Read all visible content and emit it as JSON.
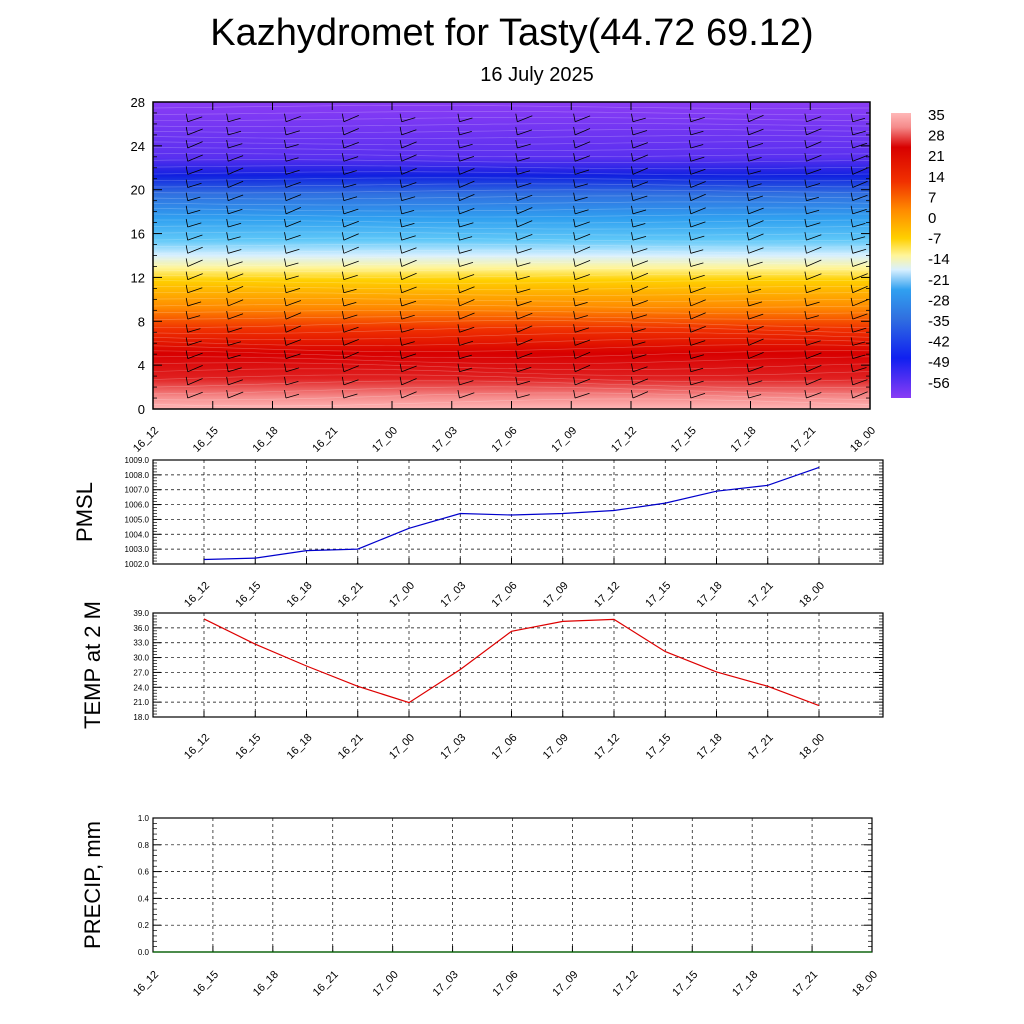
{
  "title": "Kazhydromet for Tasty(44.72 69.12)",
  "subtitle": "16 July 2025",
  "time_labels": [
    "16_12",
    "16_15",
    "16_18",
    "16_21",
    "17_00",
    "17_03",
    "17_06",
    "17_09",
    "17_12",
    "17_15",
    "17_18",
    "17_21",
    "18_00"
  ],
  "chart_data": [
    {
      "type": "heatmap",
      "title": "",
      "xlabel": "",
      "ylabel": "",
      "x": [
        "16_12",
        "16_15",
        "16_18",
        "16_21",
        "17_00",
        "17_03",
        "17_06",
        "17_09",
        "17_12",
        "17_15",
        "17_18",
        "17_21",
        "18_00"
      ],
      "y_ticks": [
        0,
        4,
        8,
        12,
        16,
        20,
        24,
        28
      ],
      "ylim": [
        0,
        28
      ],
      "colorbar_labels": [
        "35",
        "28",
        "21",
        "14",
        "7",
        "0",
        "-7",
        "-14",
        "-21",
        "-28",
        "-35",
        "-42",
        "-49",
        "-56"
      ],
      "overlay": "wind barbs"
    },
    {
      "type": "line",
      "ylabel": "PMSL",
      "x": [
        "16_12",
        "16_15",
        "16_18",
        "16_21",
        "17_00",
        "17_03",
        "17_06",
        "17_09",
        "17_12",
        "17_15",
        "17_18",
        "17_21",
        "18_00"
      ],
      "values": [
        1002.3,
        1002.4,
        1002.9,
        1003.0,
        1004.4,
        1005.4,
        1005.3,
        1005.4,
        1005.6,
        1006.1,
        1006.9,
        1007.3,
        1008.5
      ],
      "ylim": [
        1002.0,
        1009.0
      ],
      "y_ticks": [
        "1002.0",
        "1003.0",
        "1004.0",
        "1005.0",
        "1006.0",
        "1007.0",
        "1008.0",
        "1009.0"
      ],
      "color": "#0000cc",
      "grid": true
    },
    {
      "type": "line",
      "ylabel": "TEMP at 2 M",
      "x": [
        "16_12",
        "16_15",
        "16_18",
        "16_21",
        "17_00",
        "17_03",
        "17_06",
        "17_09",
        "17_12",
        "17_15",
        "17_18",
        "17_21",
        "18_00"
      ],
      "values": [
        37.8,
        32.7,
        28.3,
        24.2,
        20.9,
        27.6,
        35.3,
        37.3,
        37.7,
        31.2,
        27.1,
        24.2,
        20.3
      ],
      "ylim": [
        18.0,
        39.0
      ],
      "y_ticks": [
        "18.0",
        "21.0",
        "24.0",
        "27.0",
        "30.0",
        "33.0",
        "36.0",
        "39.0"
      ],
      "color": "#dd0000",
      "grid": true
    },
    {
      "type": "line",
      "ylabel": "PRECIP, mm",
      "x": [
        "16_12",
        "16_15",
        "16_18",
        "16_21",
        "17_00",
        "17_03",
        "17_06",
        "17_09",
        "17_12",
        "17_15",
        "17_18",
        "17_21",
        "18_00"
      ],
      "values": [
        0,
        0,
        0,
        0,
        0,
        0,
        0,
        0,
        0,
        0,
        0,
        0,
        0
      ],
      "ylim": [
        0.0,
        1.0
      ],
      "y_ticks": [
        "0.0",
        "0.2",
        "0.4",
        "0.6",
        "0.8",
        "1.0"
      ],
      "color": "#006600",
      "grid": true
    }
  ]
}
